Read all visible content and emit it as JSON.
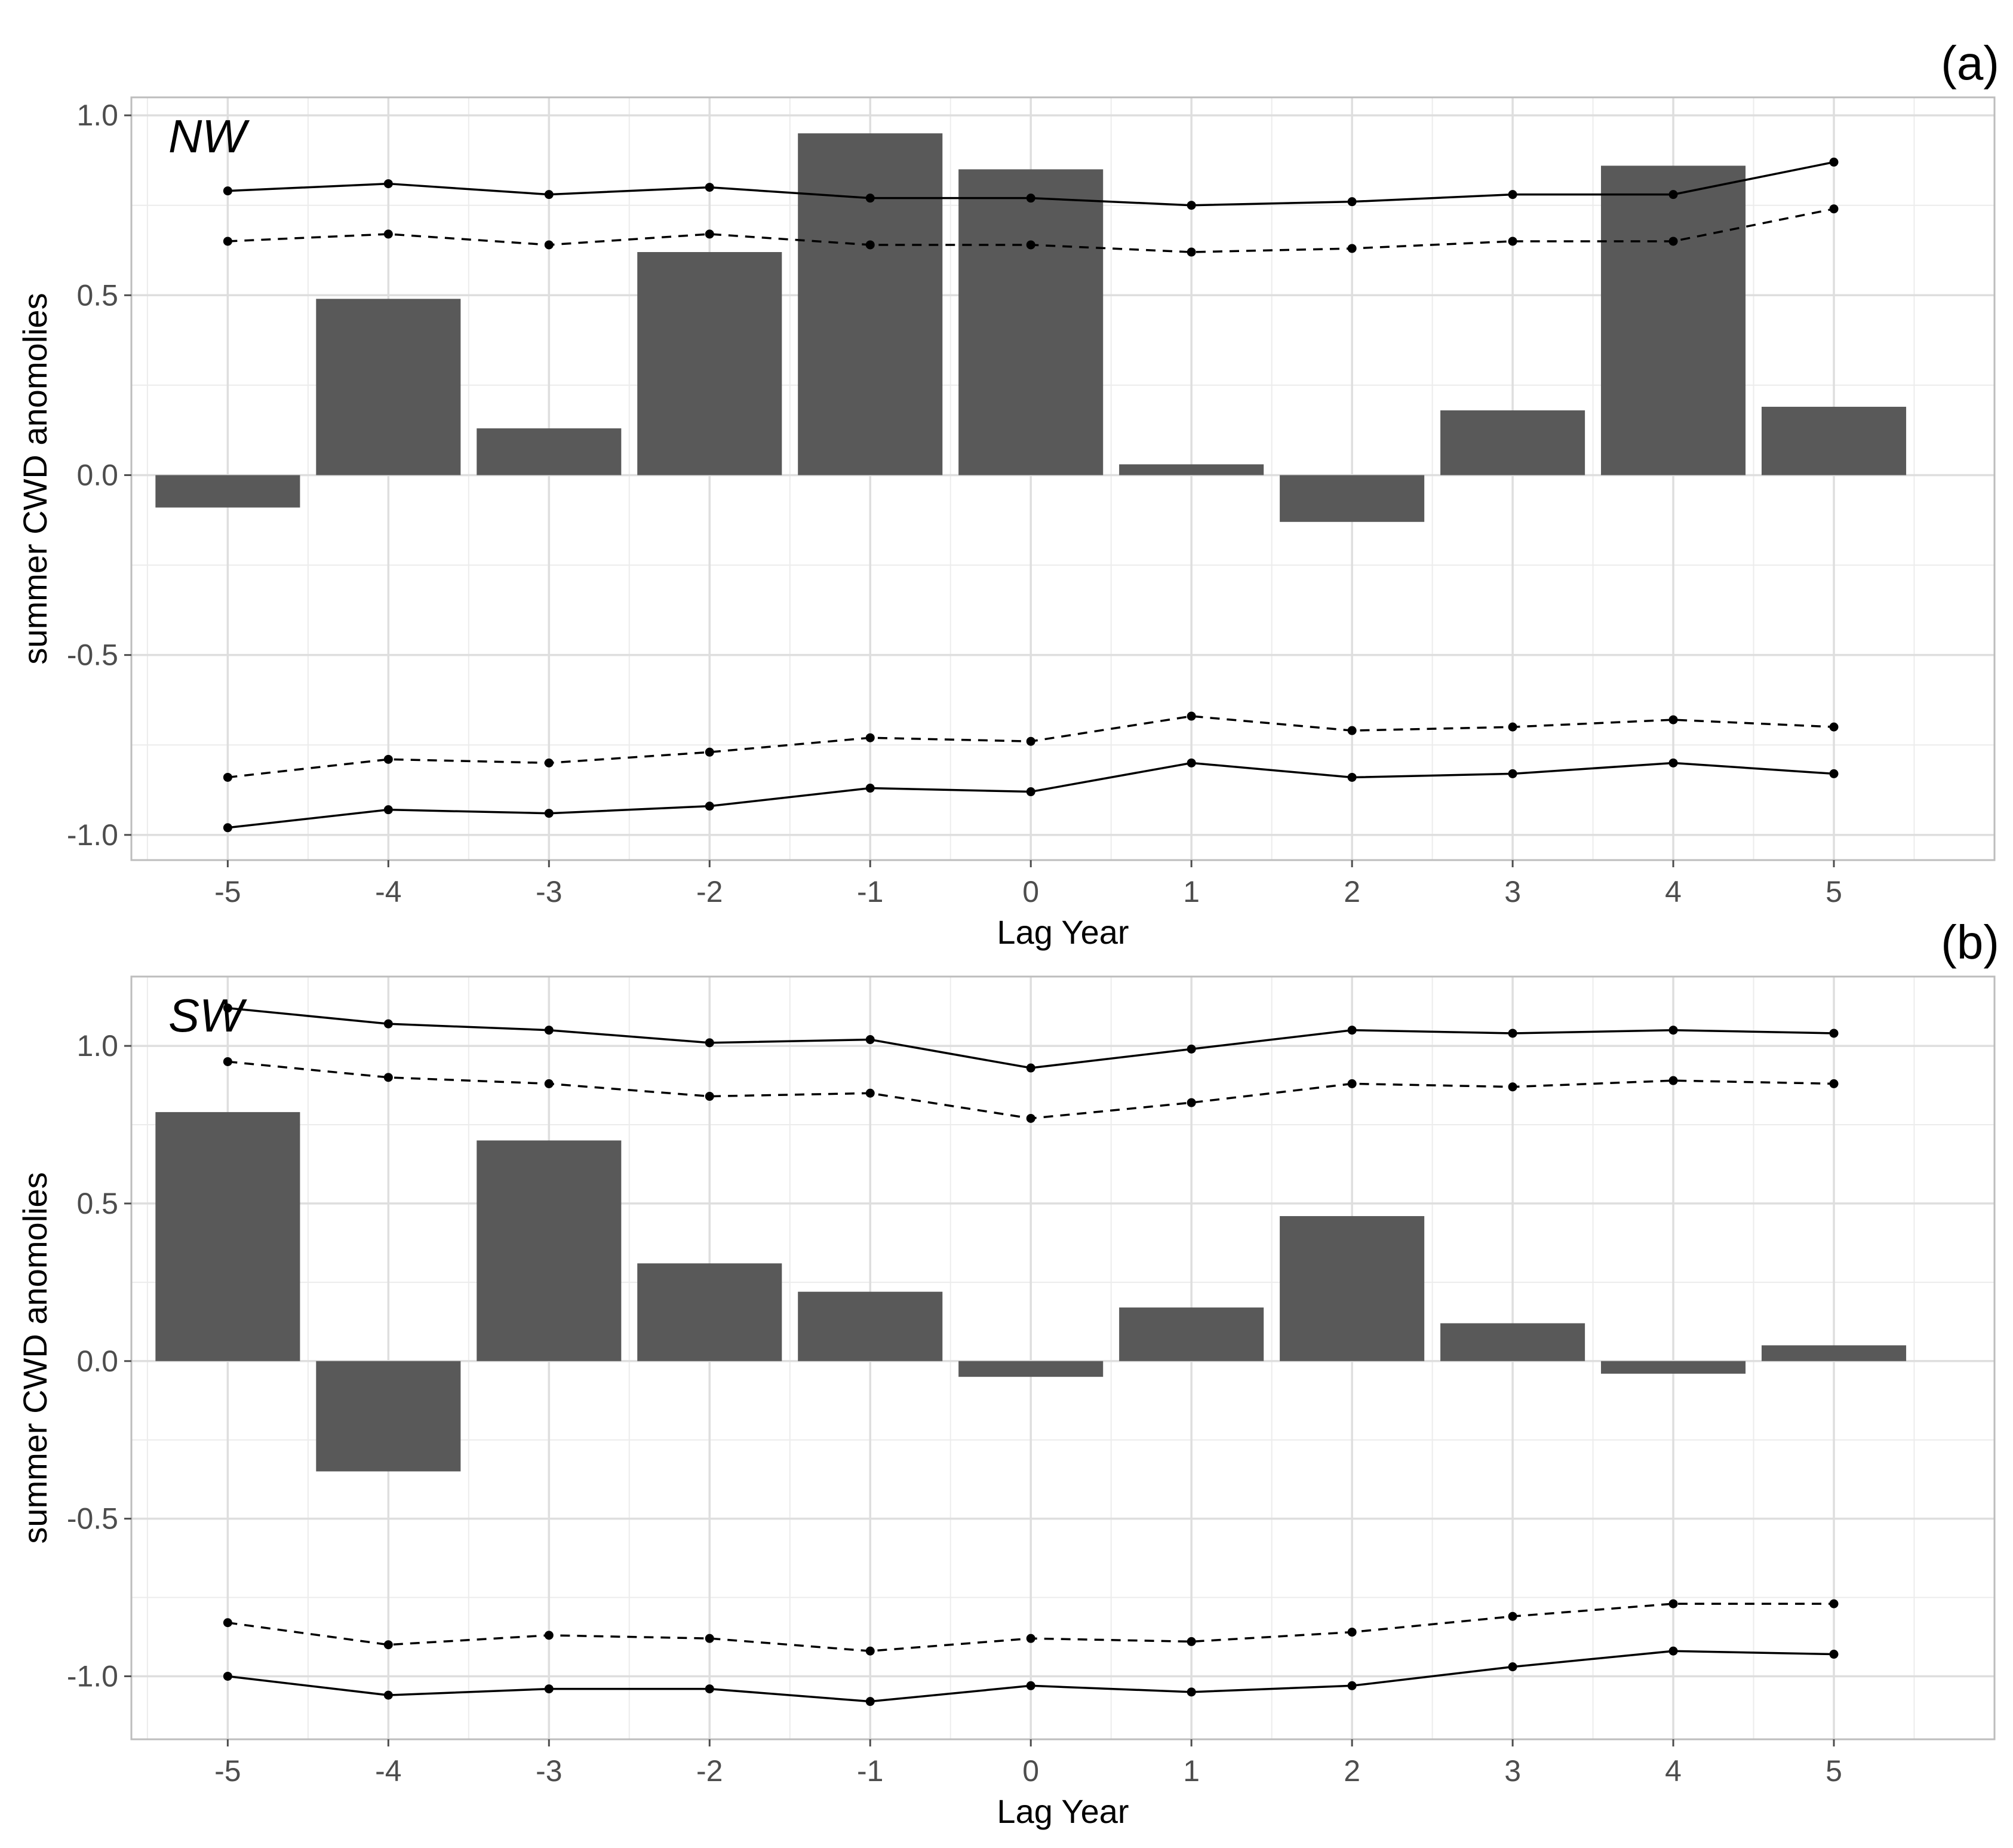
{
  "chart_data": [
    {
      "type": "bar",
      "panel_tag": "(a)",
      "region": "NW",
      "xlabel": "Lag Year",
      "ylabel": "summer CWD anomolies",
      "categories": [
        -5,
        -4,
        -3,
        -2,
        -1,
        0,
        1,
        2,
        3,
        4,
        5
      ],
      "x_tick_labels": [
        "-5",
        "-4",
        "-3",
        "-2",
        "-1",
        "0",
        "1",
        "2",
        "3",
        "4",
        "5"
      ],
      "values": [
        -0.09,
        0.49,
        0.13,
        0.62,
        0.95,
        0.85,
        0.03,
        -0.13,
        0.18,
        0.86,
        0.19
      ],
      "ylim": [
        -1.07,
        1.05
      ],
      "y_ticks": [
        -1.0,
        -0.5,
        0.0,
        0.5,
        1.0
      ],
      "y_tick_labels": [
        "-1.0",
        "-0.5",
        "0.0",
        "0.5",
        "1.0"
      ],
      "grid": true,
      "bar_color": "#595959",
      "lines": [
        {
          "name": "upper confidence (solid)",
          "style": "solid",
          "values": [
            0.79,
            0.81,
            0.78,
            0.8,
            0.77,
            0.77,
            0.75,
            0.76,
            0.78,
            0.78,
            0.87
          ]
        },
        {
          "name": "upper confidence (dashed)",
          "style": "dashed",
          "values": [
            0.65,
            0.67,
            0.64,
            0.67,
            0.64,
            0.64,
            0.62,
            0.63,
            0.65,
            0.65,
            0.74
          ]
        },
        {
          "name": "lower confidence (dashed)",
          "style": "dashed",
          "values": [
            -0.84,
            -0.79,
            -0.8,
            -0.77,
            -0.73,
            -0.74,
            -0.67,
            -0.71,
            -0.7,
            -0.68,
            -0.7
          ]
        },
        {
          "name": "lower confidence (solid)",
          "style": "solid",
          "values": [
            -0.98,
            -0.93,
            -0.94,
            -0.92,
            -0.87,
            -0.88,
            -0.8,
            -0.84,
            -0.83,
            -0.8,
            -0.83
          ]
        }
      ]
    },
    {
      "type": "bar",
      "panel_tag": "(b)",
      "region": "SW",
      "xlabel": "Lag Year",
      "ylabel": "summer CWD anomolies",
      "categories": [
        -5,
        -4,
        -3,
        -2,
        -1,
        0,
        1,
        2,
        3,
        4,
        5
      ],
      "x_tick_labels": [
        "-5",
        "-4",
        "-3",
        "-2",
        "-1",
        "0",
        "1",
        "2",
        "3",
        "4",
        "5"
      ],
      "values": [
        0.79,
        -0.35,
        0.7,
        0.31,
        0.22,
        -0.05,
        0.17,
        0.46,
        0.12,
        -0.04,
        0.05
      ],
      "ylim": [
        -1.2,
        1.22
      ],
      "y_ticks": [
        -1.0,
        -0.5,
        0.0,
        0.5,
        1.0
      ],
      "y_tick_labels": [
        "-1.0",
        "-0.5",
        "0.0",
        "0.5",
        "1.0"
      ],
      "grid": true,
      "bar_color": "#595959",
      "lines": [
        {
          "name": "upper confidence (solid)",
          "style": "solid",
          "values": [
            1.12,
            1.07,
            1.05,
            1.01,
            1.02,
            0.93,
            0.99,
            1.05,
            1.04,
            1.05,
            1.04
          ]
        },
        {
          "name": "upper confidence (dashed)",
          "style": "dashed",
          "values": [
            0.95,
            0.9,
            0.88,
            0.84,
            0.85,
            0.77,
            0.82,
            0.88,
            0.87,
            0.89,
            0.88
          ]
        },
        {
          "name": "lower confidence (dashed)",
          "style": "dashed",
          "values": [
            -0.83,
            -0.9,
            -0.87,
            -0.88,
            -0.92,
            -0.88,
            -0.89,
            -0.86,
            -0.81,
            -0.77,
            -0.77
          ]
        },
        {
          "name": "lower confidence (solid)",
          "style": "solid",
          "values": [
            -1.0,
            -1.06,
            -1.04,
            -1.04,
            -1.08,
            -1.03,
            -1.05,
            -1.03,
            -0.97,
            -0.92,
            -0.93
          ]
        }
      ]
    }
  ]
}
